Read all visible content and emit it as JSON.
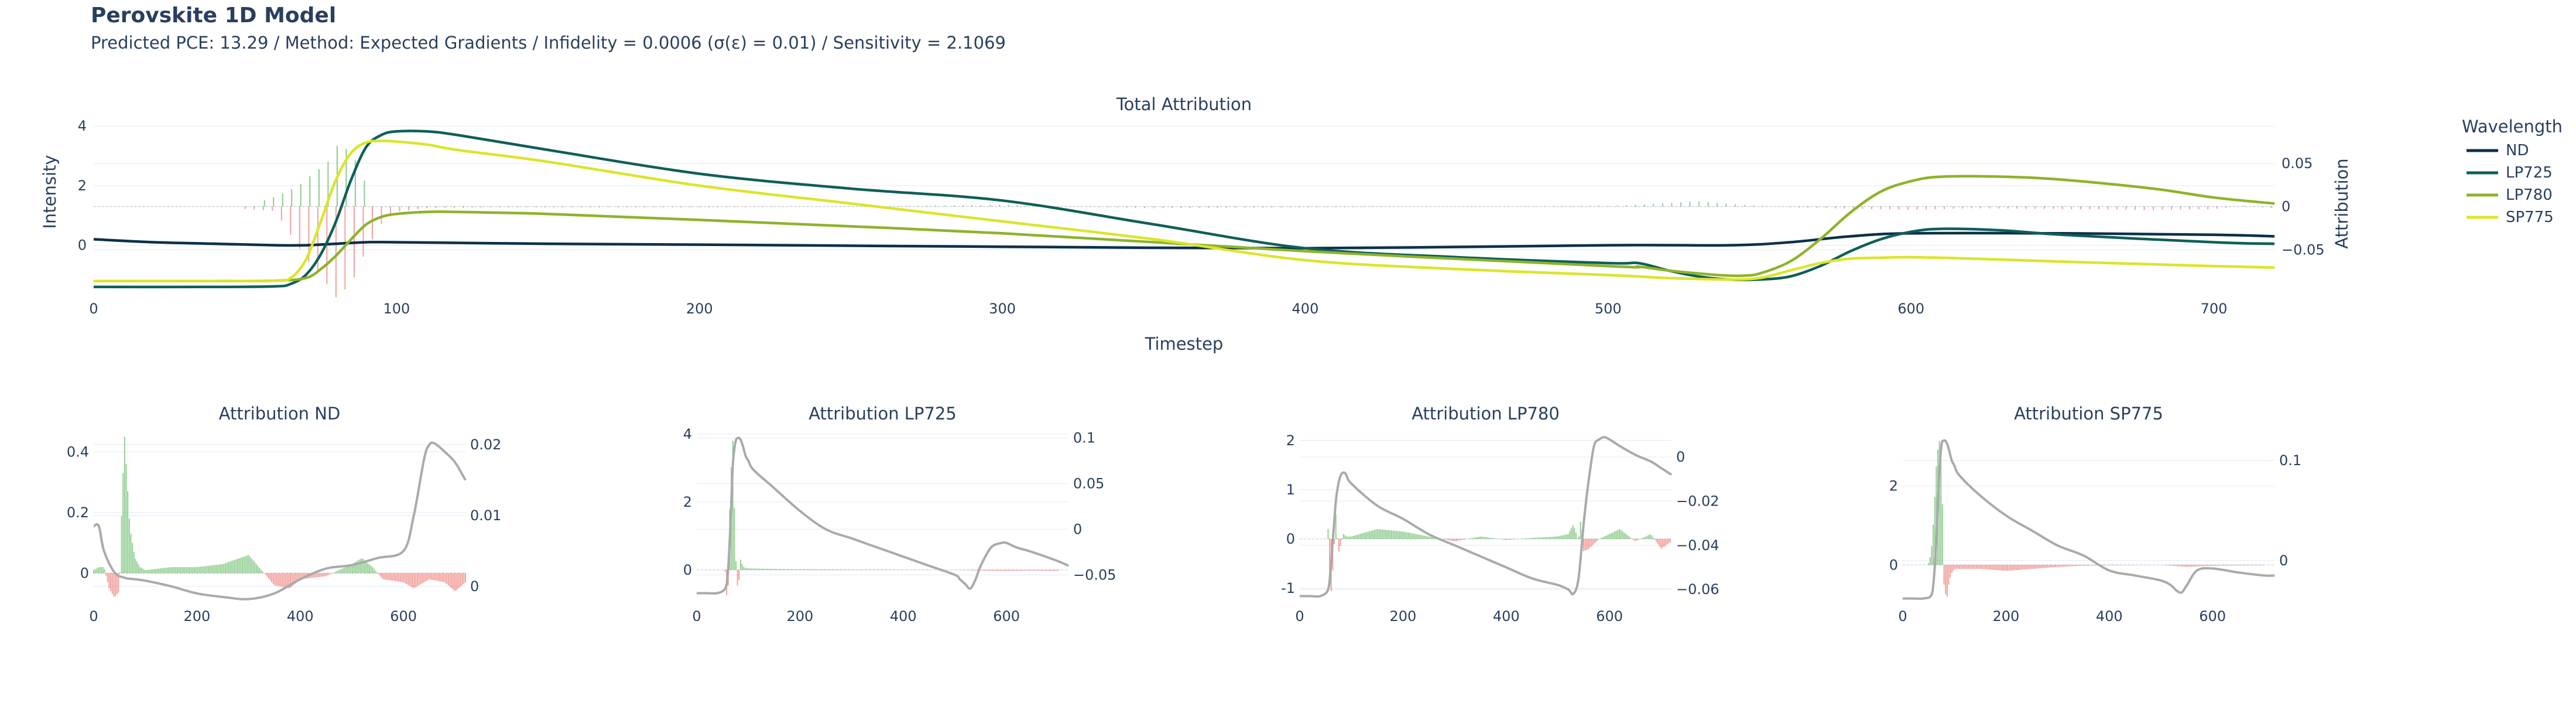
{
  "header": {
    "title": "Perovskite 1D Model",
    "subtitle": "Predicted PCE: 13.29 / Method: Expected Gradients / Infidelity = 0.0006 (σ(ε) = 0.01) / Sensitivity = 2.1069"
  },
  "colors": {
    "positive_bar": "#2ca02c",
    "negative_bar": "#e8413a",
    "mean_curve": "#aaaaaa",
    "ND": "#0b3049",
    "LP725": "#0f5f57",
    "LP780": "#8db32a",
    "SP775": "#dbe52a"
  },
  "chart_data": [
    {
      "type": "line",
      "title": "Total Attribution",
      "xlabel": "Timestep",
      "ylabel": "Intensity",
      "y2label": "Attribution",
      "xlim": [
        0,
        720
      ],
      "ylim": [
        -1.6,
        4.2
      ],
      "y2lim": [
        -0.1,
        0.1
      ],
      "xticks": [
        0,
        100,
        200,
        300,
        400,
        500,
        600,
        700
      ],
      "yticks": [
        0,
        2,
        4
      ],
      "y2ticks": [
        -0.05,
        0,
        0.05
      ],
      "y2ticklabels": [
        "−0.05",
        "0",
        "0.05"
      ],
      "legend": {
        "title": "Wavelength",
        "position": "right",
        "entries": [
          "ND",
          "LP725",
          "LP780",
          "SP775"
        ]
      },
      "series": [
        {
          "name": "ND",
          "x": [
            0,
            20,
            40,
            60,
            70,
            80,
            90,
            100,
            150,
            200,
            300,
            400,
            500,
            540,
            560,
            580,
            600,
            650,
            700,
            720
          ],
          "y": [
            0.2,
            0.1,
            0.05,
            0,
            0,
            0.05,
            0.1,
            0.1,
            0.05,
            0.02,
            -0.05,
            -0.1,
            0,
            0,
            0.1,
            0.3,
            0.4,
            0.4,
            0.35,
            0.3
          ]
        },
        {
          "name": "LP725",
          "x": [
            0,
            40,
            60,
            65,
            70,
            75,
            80,
            85,
            90,
            95,
            100,
            110,
            120,
            150,
            200,
            250,
            300,
            350,
            400,
            450,
            500,
            510,
            520,
            530,
            540,
            550,
            560,
            570,
            580,
            590,
            600,
            610,
            630,
            650,
            700,
            720
          ],
          "y": [
            -1.4,
            -1.4,
            -1.38,
            -1.3,
            -1,
            -0.3,
            0.8,
            2.2,
            3.3,
            3.7,
            3.82,
            3.82,
            3.7,
            3.2,
            2.4,
            1.9,
            1.5,
            0.7,
            -0.1,
            -0.4,
            -0.6,
            -0.6,
            -0.85,
            -1.05,
            -1.15,
            -1.15,
            -1.05,
            -0.7,
            -0.2,
            0.2,
            0.45,
            0.55,
            0.5,
            0.35,
            0.1,
            0.05
          ]
        },
        {
          "name": "LP780",
          "x": [
            0,
            40,
            60,
            70,
            75,
            80,
            85,
            90,
            95,
            100,
            110,
            120,
            130,
            150,
            200,
            300,
            400,
            500,
            510,
            520,
            530,
            540,
            545,
            550,
            560,
            570,
            580,
            590,
            600,
            610,
            630,
            650,
            680,
            700,
            720
          ],
          "y": [
            -1.2,
            -1.2,
            -1.19,
            -1.1,
            -0.8,
            -0.35,
            0.2,
            0.7,
            0.95,
            1.05,
            1.12,
            1.12,
            1.1,
            1.05,
            0.85,
            0.4,
            -0.2,
            -0.7,
            -0.72,
            -0.85,
            -0.95,
            -1.02,
            -1.02,
            -0.95,
            -0.55,
            0.2,
            1.1,
            1.8,
            2.15,
            2.3,
            2.3,
            2.2,
            1.9,
            1.6,
            1.4
          ]
        },
        {
          "name": "SP775",
          "x": [
            0,
            40,
            60,
            65,
            70,
            75,
            80,
            85,
            90,
            95,
            100,
            110,
            120,
            150,
            200,
            250,
            300,
            350,
            400,
            450,
            500,
            520,
            540,
            550,
            560,
            570,
            580,
            590,
            600,
            620,
            650,
            700,
            720
          ],
          "y": [
            -1.2,
            -1.2,
            -1.19,
            -1.1,
            -0.5,
            0.8,
            2.2,
            3.1,
            3.45,
            3.5,
            3.48,
            3.38,
            3.2,
            2.8,
            2,
            1.4,
            0.8,
            0.2,
            -0.5,
            -0.8,
            -1,
            -1.1,
            -1.15,
            -1.1,
            -0.85,
            -0.6,
            -0.45,
            -0.42,
            -0.4,
            -0.45,
            -0.55,
            -0.7,
            -0.75
          ]
        }
      ],
      "attribution": {
        "x": [
          50,
          60,
          70,
          75,
          80,
          85,
          90,
          95,
          100,
          110,
          130,
          200,
          250,
          300,
          320,
          350,
          400,
          450,
          500,
          510,
          520,
          530,
          540,
          550,
          560,
          600,
          620,
          650,
          680,
          700,
          710,
          720
        ],
        "y": [
          -0.003,
          -0.005,
          -0.06,
          -0.08,
          -0.105,
          -0.09,
          -0.05,
          -0.02,
          -0.006,
          -0.002,
          -0.001,
          -0.001,
          0,
          0.002,
          0,
          -0.002,
          -0.001,
          0,
          0.001,
          0.002,
          0.004,
          0.006,
          0.003,
          0.001,
          -0.001,
          -0.004,
          -0.002,
          -0.003,
          -0.004,
          -0.003,
          0.001,
          -0.002
        ],
        "positive_x": [
          55,
          60,
          65,
          70,
          72,
          75,
          78,
          80,
          82,
          85,
          88,
          90
        ],
        "positive_y": [
          0.006,
          0.012,
          0.02,
          0.03,
          0.04,
          0.045,
          0.055,
          0.07,
          0.07,
          0.06,
          0.04,
          0.02
        ]
      }
    },
    {
      "type": "line",
      "title": "Attribution ND",
      "xlim": [
        0,
        720
      ],
      "xticks": [
        0,
        200,
        400,
        600
      ],
      "yticks": [
        0,
        0.2,
        0.4
      ],
      "y2ticks": [
        0,
        0.01,
        0.02
      ],
      "ylim": [
        -0.09,
        0.47
      ],
      "y2lim": [
        -0.002,
        0.022
      ],
      "attribution": {
        "x": [
          0,
          10,
          20,
          30,
          40,
          50,
          55,
          60,
          65,
          70,
          80,
          90,
          100,
          150,
          200,
          250,
          300,
          350,
          380,
          400,
          450,
          500,
          520,
          540,
          560,
          600,
          620,
          650,
          680,
          700,
          720
        ],
        "y": [
          0.01,
          0.02,
          0.02,
          -0.05,
          -0.08,
          -0.06,
          0.25,
          0.45,
          0.3,
          0.15,
          0.05,
          0.02,
          0.01,
          0.02,
          0.02,
          0.03,
          0.06,
          -0.04,
          -0.05,
          -0.02,
          -0.01,
          0.03,
          0.05,
          0.02,
          -0.02,
          -0.03,
          -0.05,
          -0.02,
          -0.03,
          -0.06,
          -0.03
        ]
      },
      "mean": {
        "x": [
          0,
          10,
          20,
          40,
          60,
          80,
          100,
          150,
          200,
          250,
          300,
          350,
          400,
          450,
          500,
          550,
          600,
          620,
          640,
          650,
          660,
          680,
          700,
          720
        ],
        "y": [
          0.0085,
          0.0085,
          0.005,
          0.002,
          0.0012,
          0.001,
          0.0008,
          0,
          -0.001,
          -0.0015,
          -0.0018,
          -0.001,
          0.001,
          0.0025,
          0.003,
          0.004,
          0.005,
          0.01,
          0.018,
          0.02,
          0.0202,
          0.019,
          0.0175,
          0.015
        ]
      }
    },
    {
      "type": "line",
      "title": "Attribution LP725",
      "xlim": [
        0,
        720
      ],
      "xticks": [
        0,
        200,
        400,
        600
      ],
      "yticks": [
        0,
        2,
        4
      ],
      "y2ticks": [
        -0.05,
        0,
        0.05,
        0.1
      ],
      "y2ticklabels": [
        "−0.05",
        "0",
        "0.05",
        "0.1"
      ],
      "ylim": [
        -0.9,
        4.1
      ],
      "y2lim": [
        -0.078,
        0.108
      ],
      "attribution": {
        "x": [
          55,
          60,
          65,
          70,
          75,
          80,
          85,
          90,
          95,
          100,
          110,
          150,
          200,
          250,
          300,
          350,
          400,
          500,
          550,
          600,
          650,
          700
        ],
        "y": [
          -0.05,
          -1.2,
          2.5,
          3.8,
          0.5,
          -0.7,
          0.3,
          0.1,
          0.05,
          0.05,
          0.04,
          0.03,
          0.02,
          0.02,
          0.01,
          0.01,
          0.005,
          0,
          -0.02,
          -0.03,
          -0.02,
          -0.03
        ]
      },
      "mean": {
        "x": [
          0,
          20,
          40,
          55,
          60,
          65,
          70,
          75,
          80,
          85,
          90,
          95,
          100,
          110,
          150,
          200,
          250,
          300,
          350,
          400,
          450,
          500,
          510,
          520,
          530,
          540,
          550,
          570,
          590,
          600,
          620,
          650,
          700,
          720
        ],
        "y": [
          -0.07,
          -0.07,
          -0.07,
          -0.065,
          -0.05,
          0,
          0.07,
          0.095,
          0.1,
          0.098,
          0.09,
          0.08,
          0.075,
          0.065,
          0.045,
          0.02,
          0,
          -0.01,
          -0.02,
          -0.03,
          -0.04,
          -0.05,
          -0.055,
          -0.06,
          -0.065,
          -0.055,
          -0.04,
          -0.02,
          -0.015,
          -0.015,
          -0.02,
          -0.025,
          -0.035,
          -0.04
        ]
      }
    },
    {
      "type": "line",
      "title": "Attribution LP780",
      "xlim": [
        0,
        720
      ],
      "xticks": [
        0,
        200,
        400,
        600
      ],
      "yticks": [
        -1,
        0,
        1,
        2
      ],
      "y2ticks": [
        -0.06,
        -0.04,
        -0.02,
        0
      ],
      "y2ticklabels": [
        "−0.06",
        "−0.04",
        "−0.02",
        "0"
      ],
      "ylim": [
        -1.25,
        2.2
      ],
      "y2lim": [
        -0.065,
        0.012
      ],
      "attribution": {
        "x": [
          55,
          60,
          65,
          70,
          75,
          80,
          85,
          90,
          100,
          150,
          200,
          250,
          300,
          350,
          400,
          450,
          500,
          520,
          530,
          540,
          545,
          550,
          560,
          580,
          600,
          620,
          650,
          680,
          700,
          720
        ],
        "y": [
          0.2,
          -1.2,
          -0.5,
          0.5,
          -0.3,
          -0.1,
          0.1,
          0.05,
          0.05,
          0.2,
          0.15,
          0.05,
          -0.05,
          0.05,
          -0.02,
          0.02,
          0.05,
          0.1,
          0.3,
          -0.05,
          0.45,
          -0.25,
          -0.2,
          0,
          0.1,
          0.2,
          -0.05,
          0.1,
          -0.2,
          -0.05
        ]
      },
      "mean": {
        "x": [
          0,
          20,
          40,
          55,
          60,
          65,
          70,
          75,
          80,
          85,
          90,
          100,
          150,
          200,
          250,
          300,
          350,
          400,
          450,
          500,
          520,
          530,
          540,
          550,
          560,
          570,
          580,
          590,
          600,
          620,
          650,
          680,
          700,
          720
        ],
        "y": [
          -0.063,
          -0.063,
          -0.063,
          -0.06,
          -0.05,
          -0.035,
          -0.02,
          -0.012,
          -0.008,
          -0.007,
          -0.008,
          -0.012,
          -0.022,
          -0.028,
          -0.035,
          -0.04,
          -0.045,
          -0.05,
          -0.055,
          -0.058,
          -0.06,
          -0.062,
          -0.055,
          -0.03,
          -0.01,
          0.005,
          0.008,
          0.009,
          0.008,
          0.005,
          0.001,
          -0.002,
          -0.005,
          -0.008
        ]
      }
    },
    {
      "type": "line",
      "title": "Attribution SP775",
      "xlim": [
        0,
        720
      ],
      "xticks": [
        0,
        200,
        400,
        600
      ],
      "yticks": [
        0,
        2
      ],
      "y2ticks": [
        0,
        0.1
      ],
      "ylim": [
        -0.9,
        3.4
      ],
      "y2lim": [
        -0.04,
        0.13
      ],
      "attribution": {
        "x": [
          50,
          55,
          60,
          65,
          70,
          75,
          80,
          85,
          90,
          95,
          100,
          150,
          200,
          250,
          300,
          350,
          400,
          500,
          550,
          600,
          700
        ],
        "y": [
          0.05,
          0.3,
          1.2,
          2.5,
          3.2,
          2.9,
          -0.5,
          -0.9,
          -0.4,
          -0.2,
          -0.1,
          -0.1,
          -0.15,
          -0.1,
          -0.05,
          -0.02,
          -0.01,
          0,
          -0.05,
          -0.02,
          -0.01
        ]
      },
      "mean": {
        "x": [
          0,
          20,
          40,
          55,
          60,
          65,
          70,
          75,
          80,
          85,
          90,
          95,
          100,
          110,
          150,
          200,
          250,
          300,
          350,
          400,
          450,
          500,
          520,
          530,
          540,
          550,
          570,
          600,
          650,
          700,
          720
        ],
        "y": [
          -0.038,
          -0.038,
          -0.038,
          -0.035,
          -0.02,
          0.02,
          0.08,
          0.115,
          0.12,
          0.118,
          0.11,
          0.1,
          0.095,
          0.085,
          0.065,
          0.045,
          0.03,
          0.015,
          0.005,
          -0.01,
          -0.015,
          -0.02,
          -0.025,
          -0.03,
          -0.032,
          -0.025,
          -0.01,
          -0.008,
          -0.012,
          -0.015,
          -0.015
        ]
      }
    }
  ]
}
